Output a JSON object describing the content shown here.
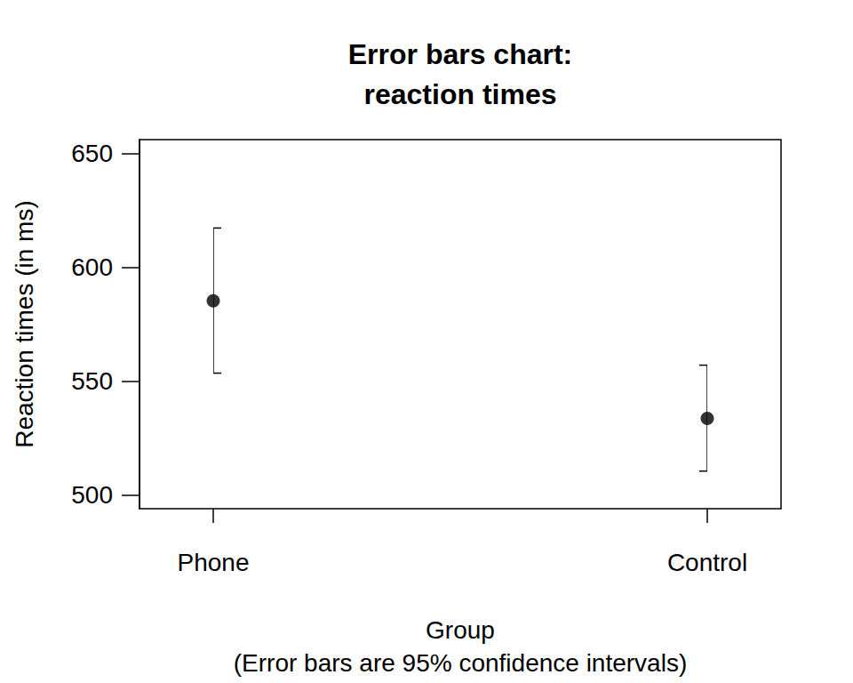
{
  "chart_data": {
    "type": "scatter",
    "title": "Error bars chart:\nreaction times",
    "x_label": "Group\n(Error bars are 95% confidence intervals)",
    "y_label": "Reaction times (in ms)",
    "categories": [
      "Phone",
      "Control"
    ],
    "values": [
      585.2,
      533.6
    ],
    "ci_lower": [
      553.5,
      510.5
    ],
    "ci_upper": [
      617.2,
      557
    ],
    "color": "#000000",
    "marker": "circle",
    "ylim": [
      494,
      656
    ],
    "yticks": [
      500,
      550,
      600,
      650
    ],
    "grid": false
  }
}
